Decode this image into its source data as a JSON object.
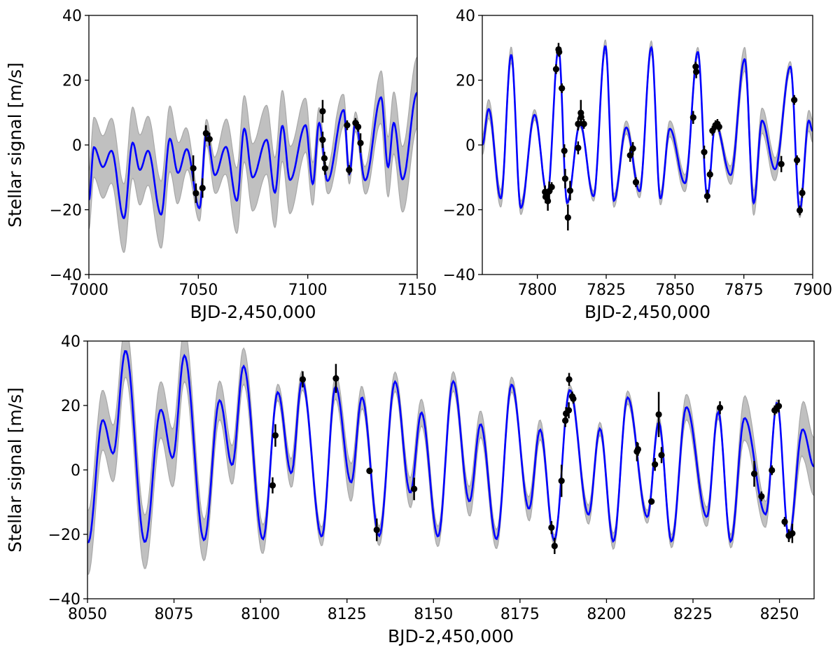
{
  "chart_data": [
    {
      "type": "line",
      "name": "top-left",
      "xlabel": "BJD-2,450,000",
      "ylabel": "Stellar signal [m/s]",
      "xlim": [
        7000,
        7150
      ],
      "ylim": [
        -40,
        40
      ],
      "xticks": [
        7000,
        7050,
        7100,
        7150
      ],
      "xtick_labels": [
        "7000",
        "7050",
        "7100",
        "7150"
      ],
      "yticks": [
        40,
        20,
        0,
        -20,
        -40
      ],
      "ytick_labels": [
        "40",
        "20",
        "0",
        "−20",
        "−40"
      ],
      "curve": [
        [
          7000,
          -17
        ],
        [
          7002.3,
          -0.7
        ],
        [
          7006.4,
          -6.8
        ],
        [
          7010.3,
          -1.8
        ],
        [
          7016,
          -22.6
        ],
        [
          7020,
          0.7
        ],
        [
          7023.3,
          -7.7
        ],
        [
          7027,
          -1.8
        ],
        [
          7033,
          -21.5
        ],
        [
          7037,
          1.9
        ],
        [
          7040.7,
          -8.6
        ],
        [
          7044.7,
          -1.3
        ],
        [
          7050.5,
          -19.5
        ],
        [
          7053.7,
          3.9
        ],
        [
          7057.6,
          -9.3
        ],
        [
          7062.6,
          -0.6
        ],
        [
          7067.6,
          -17.2
        ],
        [
          7071,
          5.0
        ],
        [
          7074.8,
          -10
        ],
        [
          7081.2,
          1.6
        ],
        [
          7085,
          -14.7
        ],
        [
          7088.4,
          5.9
        ],
        [
          7091.9,
          -10.8
        ],
        [
          7099,
          6.1
        ],
        [
          7102.3,
          -12
        ],
        [
          7105.2,
          6.8
        ],
        [
          7109,
          -11.1
        ],
        [
          7116.4,
          10.8
        ],
        [
          7119,
          -9
        ],
        [
          7121.8,
          7.2
        ],
        [
          7126.2,
          -10.9
        ],
        [
          7133.5,
          14.7
        ],
        [
          7136.7,
          -6.8
        ],
        [
          7139.3,
          6.8
        ],
        [
          7143.3,
          -10.6
        ],
        [
          7150,
          16.1
        ]
      ],
      "band_sigma": [
        [
          7000,
          9
        ],
        [
          7020,
          11
        ],
        [
          7040,
          10
        ],
        [
          7048,
          4
        ],
        [
          7055,
          4
        ],
        [
          7065,
          10
        ],
        [
          7090,
          11
        ],
        [
          7100,
          8
        ],
        [
          7108,
          3
        ],
        [
          7113,
          7
        ],
        [
          7119,
          3
        ],
        [
          7124,
          3
        ],
        [
          7135,
          9
        ],
        [
          7150,
          11
        ]
      ],
      "points": [
        [
          7047.7,
          -7.2,
          4
        ],
        [
          7048.9,
          -14.9,
          3
        ],
        [
          7051.9,
          -13.3,
          3
        ],
        [
          7053.5,
          3.6,
          2.5
        ],
        [
          7055.1,
          1.8,
          2
        ],
        [
          7106.8,
          10.4,
          3.5
        ],
        [
          7106.8,
          1.6,
          2.5
        ],
        [
          7107.6,
          -4.1,
          2
        ],
        [
          7107.9,
          -7.2,
          2
        ],
        [
          7118,
          6.1,
          1.5
        ],
        [
          7118.9,
          -7.7,
          1.5
        ],
        [
          7121.8,
          6.8,
          1.5
        ],
        [
          7123,
          5.6,
          1.5
        ],
        [
          7124.1,
          0.6,
          3
        ]
      ]
    },
    {
      "type": "line",
      "name": "top-right",
      "xlabel": "BJD-2,450,000",
      "ylabel": "",
      "xlim": [
        7780,
        7900
      ],
      "ylim": [
        -40,
        40
      ],
      "xticks": [
        7800,
        7825,
        7850,
        7875,
        7900
      ],
      "xtick_labels": [
        "7800",
        "7825",
        "7850",
        "7875",
        "7900"
      ],
      "yticks": [
        40,
        20,
        0,
        -20,
        -40
      ],
      "ytick_labels": [
        "40",
        "20",
        "0",
        "−20",
        "−40"
      ],
      "curve": [
        [
          7780,
          0
        ],
        [
          7782.3,
          11.1
        ],
        [
          7786.7,
          -16.5
        ],
        [
          7790.5,
          27.8
        ],
        [
          7794,
          -19.4
        ],
        [
          7799,
          9.3
        ],
        [
          7803.6,
          -15.4
        ],
        [
          7807.7,
          29.7
        ],
        [
          7810.8,
          -17.9
        ],
        [
          7815.5,
          6.5
        ],
        [
          7820.4,
          -15.8
        ],
        [
          7824.7,
          30.5
        ],
        [
          7827.8,
          -17.2
        ],
        [
          7832.3,
          5.4
        ],
        [
          7837.1,
          -14.3
        ],
        [
          7841.4,
          30.1
        ],
        [
          7844.7,
          -16.5
        ],
        [
          7848.1,
          5.0
        ],
        [
          7853.6,
          -11.8
        ],
        [
          7858.3,
          28.7
        ],
        [
          7861.7,
          -15.8
        ],
        [
          7864.7,
          6.5
        ],
        [
          7870.2,
          -9.3
        ],
        [
          7875.3,
          26.5
        ],
        [
          7878.6,
          -17.9
        ],
        [
          7881.6,
          7.5
        ],
        [
          7886.3,
          -7.5
        ],
        [
          7891.9,
          24.2
        ],
        [
          7895.3,
          -20.1
        ],
        [
          7898.6,
          7.5
        ],
        [
          7900,
          4.3
        ]
      ],
      "band_sigma": [
        [
          7780,
          3
        ],
        [
          7790,
          2.5
        ],
        [
          7805,
          1
        ],
        [
          7815,
          1
        ],
        [
          7825,
          2
        ],
        [
          7845,
          2
        ],
        [
          7852,
          3
        ],
        [
          7860,
          1
        ],
        [
          7865,
          1
        ],
        [
          7872,
          3.5
        ],
        [
          7885,
          4
        ],
        [
          7892,
          1.5
        ],
        [
          7900,
          3.5
        ]
      ],
      "points": [
        [
          7802.8,
          -14.5,
          2
        ],
        [
          7803,
          -16,
          2
        ],
        [
          7803.8,
          -17.3,
          3
        ],
        [
          7804.3,
          -14.3,
          3
        ],
        [
          7805.2,
          -13,
          1.5
        ],
        [
          7806.8,
          23.4,
          1.5
        ],
        [
          7807.7,
          29.5,
          2
        ],
        [
          7807.9,
          28.7,
          1.5
        ],
        [
          7808.9,
          17.5,
          1.5
        ],
        [
          7809.8,
          -1.8,
          2
        ],
        [
          7810.1,
          -10.4,
          3
        ],
        [
          7811.1,
          -22.4,
          4
        ],
        [
          7811.9,
          -14.1,
          3
        ],
        [
          7814.8,
          -0.9,
          2
        ],
        [
          7814.8,
          6.5,
          2
        ],
        [
          7815.8,
          9.9,
          4
        ],
        [
          7815.9,
          8.6,
          2
        ],
        [
          7816.9,
          6.5,
          1.5
        ],
        [
          7833.7,
          -3.2,
          2
        ],
        [
          7834.7,
          -1.1,
          2
        ],
        [
          7835.8,
          -11.5,
          1.5
        ],
        [
          7856.6,
          8.5,
          2
        ],
        [
          7857.5,
          24.2,
          1.5
        ],
        [
          7857.7,
          22.6,
          2
        ],
        [
          7860.6,
          -2.2,
          2
        ],
        [
          7861.7,
          -15.8,
          2
        ],
        [
          7862.7,
          -9.1,
          1.5
        ],
        [
          7863.6,
          4.4,
          1.5
        ],
        [
          7864.7,
          6.1,
          1.5
        ],
        [
          7865.4,
          6.5,
          1.5
        ],
        [
          7866,
          5.6,
          1.5
        ],
        [
          7888.6,
          -5.9,
          2.5
        ],
        [
          7893.3,
          13.9,
          1.5
        ],
        [
          7894.3,
          -4.7,
          1.5
        ],
        [
          7895.3,
          -20.2,
          1.5
        ],
        [
          7896.2,
          -14.8,
          1.5
        ]
      ]
    },
    {
      "type": "line",
      "name": "bottom",
      "xlabel": "BJD-2,450,000",
      "ylabel": "Stellar signal [m/s]",
      "xlim": [
        8050,
        8260
      ],
      "ylim": [
        -40,
        40
      ],
      "xticks": [
        8050,
        8075,
        8100,
        8125,
        8150,
        8175,
        8200,
        8225,
        8250
      ],
      "xtick_labels": [
        "8050",
        "8075",
        "8100",
        "8125",
        "8150",
        "8175",
        "8200",
        "8225",
        "8250"
      ],
      "yticks": [
        40,
        20,
        0,
        -20,
        -40
      ],
      "ytick_labels": [
        "40",
        "20",
        "0",
        "−20",
        "−40"
      ],
      "curve": [
        [
          8050.2,
          -22.5
        ],
        [
          8054.4,
          15.5
        ],
        [
          8057.4,
          5.1
        ],
        [
          8061,
          37
        ],
        [
          8066.6,
          -22.4
        ],
        [
          8071.2,
          18.7
        ],
        [
          8074.6,
          3.7
        ],
        [
          8078,
          35.5
        ],
        [
          8083.7,
          -21.8
        ],
        [
          8088.2,
          21.6
        ],
        [
          8091.8,
          1.5
        ],
        [
          8095.1,
          32.2
        ],
        [
          8100.7,
          -21.5
        ],
        [
          8105,
          24.1
        ],
        [
          8108.9,
          -1
        ],
        [
          8112,
          27.7
        ],
        [
          8117.7,
          -20.7
        ],
        [
          8121.7,
          25.9
        ],
        [
          8126.2,
          -3.9
        ],
        [
          8129.3,
          22.5
        ],
        [
          8134.3,
          -20.5
        ],
        [
          8138.9,
          27.4
        ],
        [
          8143.3,
          -7.1
        ],
        [
          8146.5,
          17.8
        ],
        [
          8151.3,
          -20.7
        ],
        [
          8155.7,
          27.5
        ],
        [
          8160.4,
          -9.8
        ],
        [
          8163.6,
          14.2
        ],
        [
          8168.2,
          -21.5
        ],
        [
          8172.6,
          26.5
        ],
        [
          8177.6,
          -12.1
        ],
        [
          8180.8,
          12.5
        ],
        [
          8184.9,
          -21.8
        ],
        [
          8189.4,
          24.8
        ],
        [
          8194.8,
          -13.9
        ],
        [
          8198.1,
          12.8
        ],
        [
          8202,
          -22.2
        ],
        [
          8206.1,
          22.5
        ],
        [
          8211.8,
          -14.6
        ],
        [
          8215.1,
          14.8
        ],
        [
          8218.8,
          -22.2
        ],
        [
          8223.1,
          19.5
        ],
        [
          8229,
          -14.6
        ],
        [
          8232.3,
          18
        ],
        [
          8235.9,
          -22.2
        ],
        [
          8239.9,
          16.1
        ],
        [
          8246,
          -13.8
        ],
        [
          8249.3,
          20.9
        ],
        [
          8252.7,
          -21.1
        ],
        [
          8256.7,
          12.6
        ],
        [
          8260,
          1
        ]
      ],
      "band_sigma": [
        [
          8050,
          10
        ],
        [
          8062,
          8
        ],
        [
          8075,
          9
        ],
        [
          8085,
          6
        ],
        [
          8092,
          6
        ],
        [
          8100,
          5
        ],
        [
          8104,
          2
        ],
        [
          8110,
          5
        ],
        [
          8113,
          2
        ],
        [
          8118,
          3
        ],
        [
          8120,
          3
        ],
        [
          8126,
          6
        ],
        [
          8130,
          3
        ],
        [
          8134,
          3
        ],
        [
          8140,
          3
        ],
        [
          8144,
          5
        ],
        [
          8147,
          4
        ],
        [
          8152,
          3
        ],
        [
          8158,
          3
        ],
        [
          8161,
          5
        ],
        [
          8164,
          4
        ],
        [
          8168,
          3
        ],
        [
          8175,
          2
        ],
        [
          8178,
          4
        ],
        [
          8181,
          3
        ],
        [
          8185,
          1.5
        ],
        [
          8190,
          1.5
        ],
        [
          8195,
          3
        ],
        [
          8198,
          2
        ],
        [
          8202,
          2.5
        ],
        [
          8206,
          2
        ],
        [
          8212,
          2
        ],
        [
          8215,
          2
        ],
        [
          8219,
          2
        ],
        [
          8223,
          4
        ],
        [
          8229,
          3
        ],
        [
          8232,
          2
        ],
        [
          8236,
          2
        ],
        [
          8240,
          7
        ],
        [
          8246,
          4
        ],
        [
          8249,
          1
        ],
        [
          8253,
          1
        ],
        [
          8257,
          9
        ],
        [
          8260,
          9
        ]
      ],
      "points": [
        [
          8103.5,
          -4.8,
          2.5
        ],
        [
          8104.3,
          10.7,
          3.5
        ],
        [
          8112.2,
          28.1,
          2.5
        ],
        [
          8121.8,
          28.4,
          4.5
        ],
        [
          8131.5,
          -0.3,
          1
        ],
        [
          8133.6,
          -18.6,
          3.5
        ],
        [
          8144.4,
          -5.9,
          3.5
        ],
        [
          8184.1,
          -17.9,
          2
        ],
        [
          8185,
          -23.6,
          2.5
        ],
        [
          8187,
          -3.4,
          5
        ],
        [
          8188.1,
          15.3,
          2
        ],
        [
          8188.3,
          17.5,
          2
        ],
        [
          8189.1,
          18.5,
          2.5
        ],
        [
          8189.2,
          28.1,
          2
        ],
        [
          8190.1,
          22.8,
          1.5
        ],
        [
          8190.4,
          22.1,
          1.5
        ],
        [
          8208.8,
          5.7,
          3
        ],
        [
          8209.1,
          6.4,
          2
        ],
        [
          8213,
          -9.8,
          1
        ],
        [
          8214,
          1.7,
          2
        ],
        [
          8215.1,
          17.2,
          7
        ],
        [
          8215.9,
          4.6,
          2.5
        ],
        [
          8232.8,
          19.3,
          2
        ],
        [
          8242.7,
          -1.2,
          4
        ],
        [
          8244.8,
          -8.2,
          1.5
        ],
        [
          8247.8,
          -0.1,
          1.5
        ],
        [
          8248.6,
          18.5,
          1.5
        ],
        [
          8249.1,
          19,
          1.5
        ],
        [
          8249.8,
          19.8,
          2
        ],
        [
          8251.5,
          -16.1,
          1.5
        ],
        [
          8252.7,
          -20.4,
          2
        ],
        [
          8253.7,
          -19.7,
          3
        ]
      ]
    }
  ],
  "colors": {
    "model": "#0000ff",
    "band": "#c0c0c0",
    "band_edge": "#a8a8a8",
    "points": "#000000"
  }
}
